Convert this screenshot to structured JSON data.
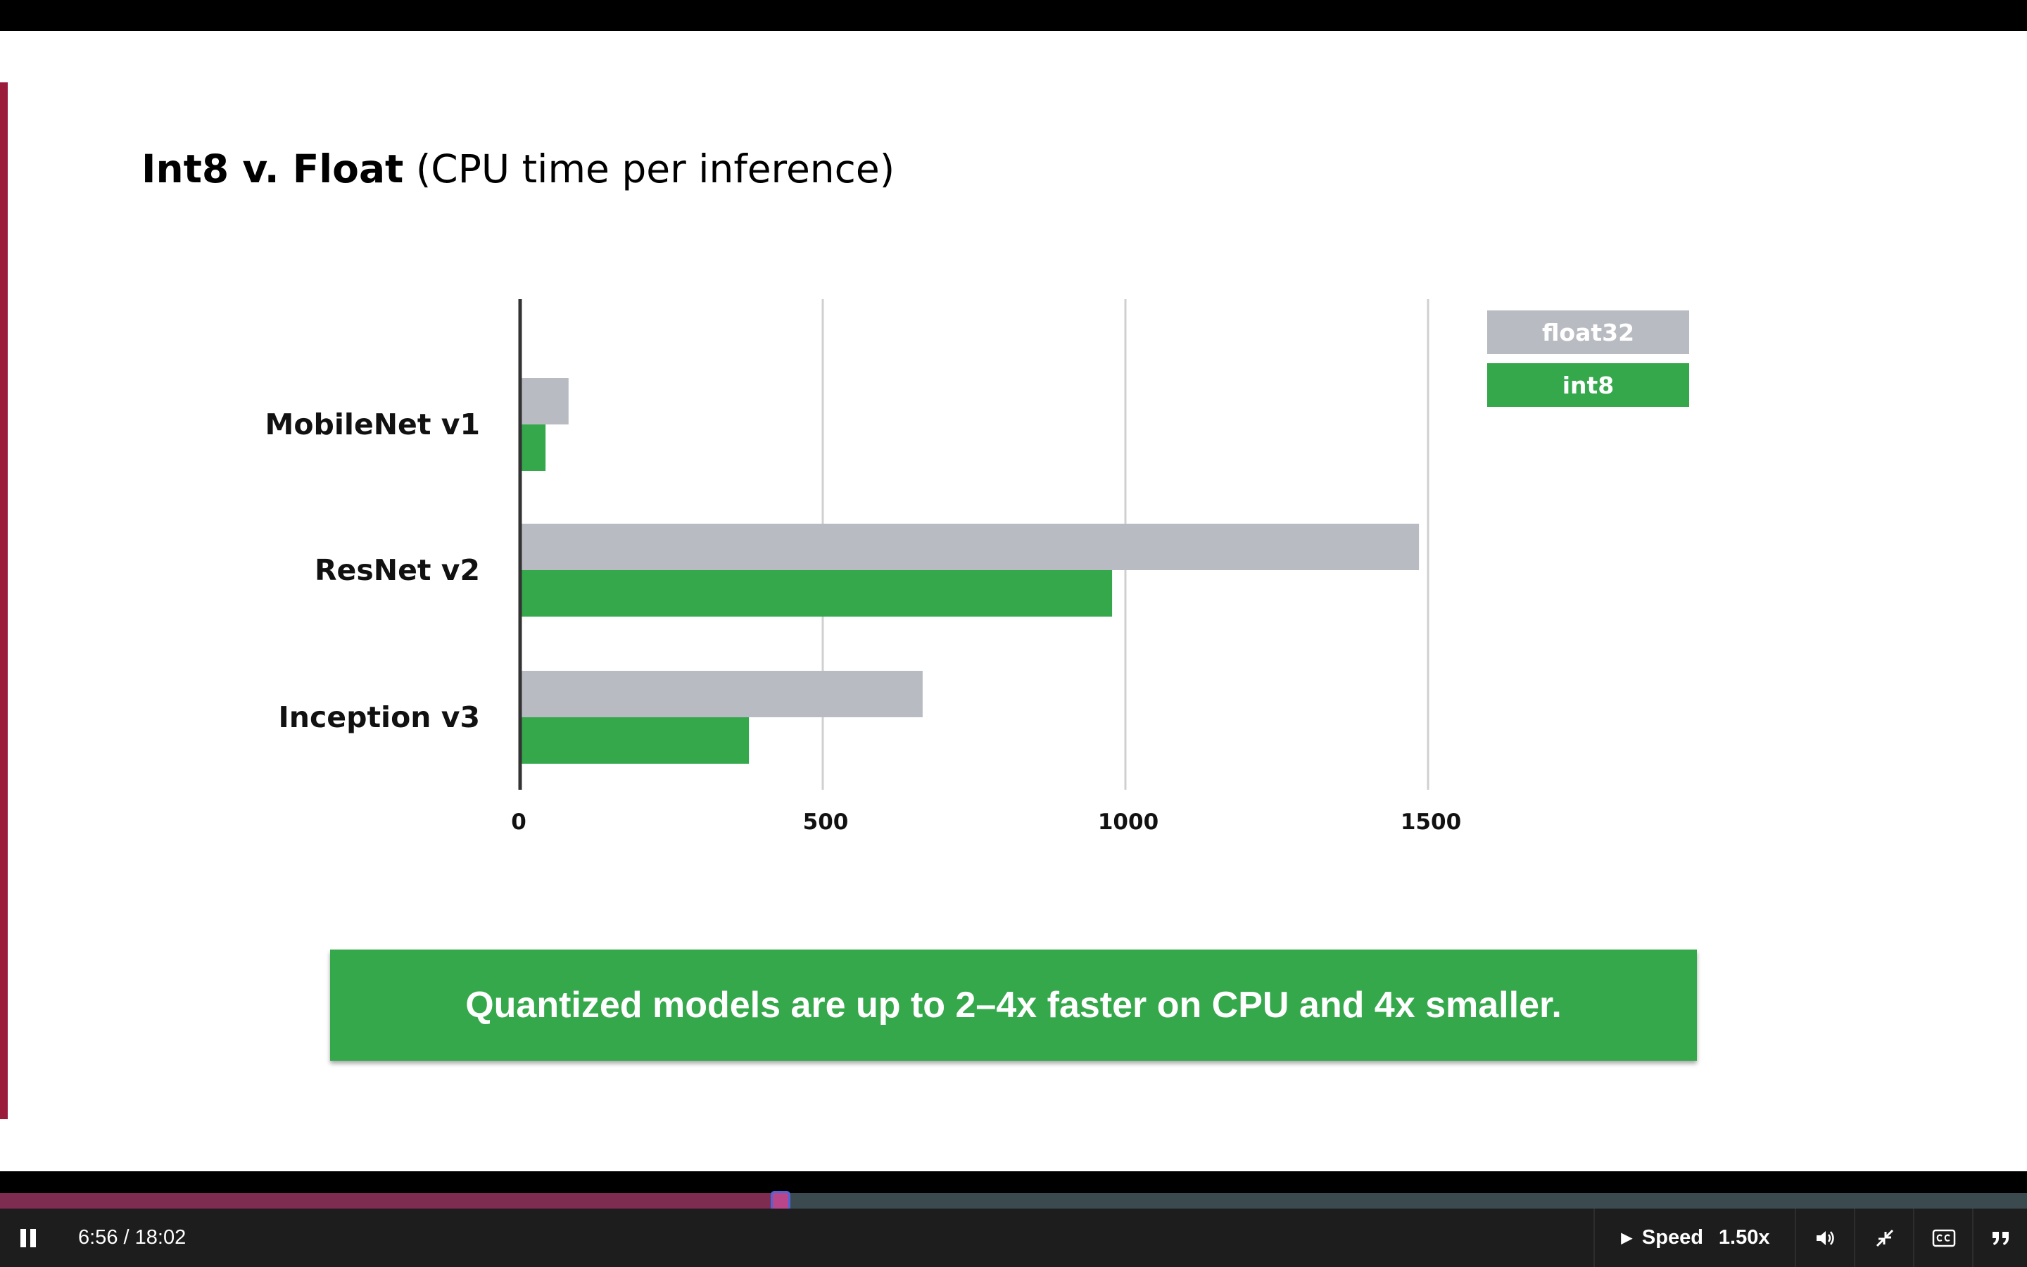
{
  "slide": {
    "title_bold": "Int8 v. Float",
    "title_rest": "(CPU time per inference)",
    "callout": "Quantized models are up to 2–4x faster on CPU and 4x smaller."
  },
  "chart_data": {
    "type": "bar",
    "orientation": "horizontal",
    "categories": [
      "MobileNet v1",
      "ResNet v2",
      "Inception v3"
    ],
    "series": [
      {
        "name": "float32",
        "values": [
          80,
          1485,
          665
        ],
        "color": "#b8bbc1"
      },
      {
        "name": "int8",
        "values": [
          42,
          978,
          378
        ],
        "color": "#34a84b"
      }
    ],
    "xticks": [
      0,
      500,
      1000,
      1500
    ],
    "xlim": [
      0,
      1500
    ],
    "grid": true,
    "legend": "top-right"
  },
  "player": {
    "current_time": "6:56",
    "separator": " / ",
    "duration": "18:02",
    "progress": 0.3844,
    "speed_label": "Speed",
    "speed_value": "1.50x",
    "colors": {
      "progress_fill": "#7e2c4f",
      "progress_track": "#3b4a4e",
      "control_bar": "#1d1d1d"
    },
    "icons": [
      "pause-icon",
      "caret-right-icon",
      "volume-icon",
      "exit-fullscreen-icon",
      "closed-captions-icon",
      "transcript-icon"
    ]
  }
}
